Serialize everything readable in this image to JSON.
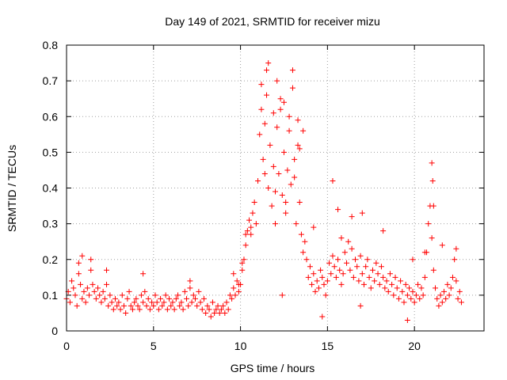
{
  "chart_data": {
    "type": "scatter",
    "title": "Day 149 of 2021, SRMTID for receiver mizu",
    "xlabel": "GPS time / hours",
    "ylabel": "SRMTID / TECUs",
    "xlim": [
      0,
      24
    ],
    "ylim": [
      0,
      0.8
    ],
    "xticks": [
      0,
      5,
      10,
      15,
      20
    ],
    "xtick_labels": [
      "0",
      "5",
      "10",
      "15",
      "20"
    ],
    "yticks": [
      0,
      0.1,
      0.2,
      0.3,
      0.4,
      0.5,
      0.6,
      0.7,
      0.8
    ],
    "ytick_labels": [
      "0",
      "0.1",
      "0.2",
      "0.3",
      "0.4",
      "0.5",
      "0.6",
      "0.7",
      "0.8"
    ],
    "grid": true,
    "marker": "+",
    "color": "#ff0000",
    "series": [
      {
        "name": "mizu",
        "x": [
          0.0,
          0.1,
          0.2,
          0.3,
          0.4,
          0.5,
          0.6,
          0.7,
          0.8,
          0.9,
          1.0,
          1.1,
          1.2,
          1.3,
          1.4,
          1.5,
          1.6,
          1.7,
          1.8,
          1.9,
          2.0,
          2.1,
          2.2,
          2.3,
          2.4,
          2.5,
          2.6,
          2.7,
          2.8,
          2.9,
          3.0,
          3.1,
          3.2,
          3.3,
          3.4,
          3.5,
          3.6,
          3.7,
          3.8,
          3.9,
          4.0,
          4.1,
          4.2,
          4.3,
          4.4,
          4.5,
          4.6,
          4.7,
          4.8,
          4.9,
          5.0,
          5.1,
          5.2,
          5.3,
          5.4,
          5.5,
          5.6,
          5.7,
          5.8,
          5.9,
          6.0,
          6.1,
          6.2,
          6.3,
          6.4,
          6.5,
          6.6,
          6.7,
          6.8,
          6.9,
          7.0,
          7.1,
          7.2,
          7.3,
          7.4,
          7.5,
          7.6,
          7.7,
          7.8,
          7.9,
          8.0,
          8.1,
          8.2,
          8.3,
          8.4,
          8.5,
          8.6,
          8.7,
          8.8,
          8.9,
          9.0,
          9.1,
          9.2,
          9.3,
          9.4,
          9.5,
          9.6,
          9.7,
          9.8,
          9.9,
          10.0,
          10.1,
          10.2,
          10.3,
          10.4,
          10.5,
          10.6,
          10.7,
          10.8,
          10.9,
          11.0,
          11.1,
          11.2,
          11.3,
          11.4,
          11.5,
          11.6,
          11.7,
          11.8,
          11.9,
          12.0,
          12.1,
          12.2,
          12.3,
          12.4,
          12.5,
          12.6,
          12.7,
          12.8,
          12.9,
          13.0,
          13.1,
          13.2,
          13.3,
          13.4,
          13.5,
          13.6,
          13.7,
          13.8,
          13.9,
          14.0,
          14.1,
          14.2,
          14.3,
          14.4,
          14.5,
          14.6,
          14.7,
          14.8,
          14.9,
          15.0,
          15.1,
          15.2,
          15.3,
          15.4,
          15.5,
          15.6,
          15.7,
          15.8,
          15.9,
          16.0,
          16.1,
          16.2,
          16.3,
          16.4,
          16.5,
          16.6,
          16.7,
          16.8,
          16.9,
          17.0,
          17.1,
          17.2,
          17.3,
          17.4,
          17.5,
          17.6,
          17.7,
          17.8,
          17.9,
          18.0,
          18.1,
          18.2,
          18.3,
          18.4,
          18.5,
          18.6,
          18.7,
          18.8,
          18.9,
          19.0,
          19.1,
          19.2,
          19.3,
          19.4,
          19.5,
          19.6,
          19.7,
          19.8,
          19.9,
          20.0,
          20.1,
          20.2,
          20.3,
          20.4,
          20.5,
          20.6,
          20.7,
          20.8,
          20.9,
          21.0,
          21.1,
          21.2,
          21.3,
          21.4,
          21.5,
          21.6,
          21.7,
          21.8,
          21.9,
          22.0,
          22.1,
          22.2,
          22.3,
          22.4,
          22.5,
          22.6,
          22.7,
          11.5,
          11.6,
          12.1,
          12.5,
          13.0,
          13.3,
          13.6,
          11.2,
          11.9,
          12.3,
          12.8,
          11.4,
          12.0,
          12.6,
          13.1,
          15.3,
          15.6,
          21.0,
          21.05,
          21.1,
          16.4,
          18.2,
          0.7,
          1.4,
          0.9,
          2.3,
          4.4,
          7.1,
          9.6,
          9.9,
          10.1,
          10.3,
          10.6,
          12.4,
          13.4,
          14.2,
          15.8,
          17.0,
          19.9,
          20.6,
          21.6,
          22.4,
          14.7,
          16.9,
          19.6
        ],
        "y": [
          0.09,
          0.11,
          0.08,
          0.14,
          0.12,
          0.1,
          0.07,
          0.16,
          0.13,
          0.09,
          0.11,
          0.08,
          0.12,
          0.1,
          0.17,
          0.13,
          0.11,
          0.09,
          0.12,
          0.1,
          0.08,
          0.11,
          0.09,
          0.13,
          0.07,
          0.1,
          0.08,
          0.06,
          0.09,
          0.07,
          0.08,
          0.06,
          0.1,
          0.07,
          0.05,
          0.09,
          0.11,
          0.07,
          0.06,
          0.08,
          0.09,
          0.07,
          0.06,
          0.1,
          0.08,
          0.11,
          0.07,
          0.09,
          0.06,
          0.08,
          0.07,
          0.1,
          0.08,
          0.06,
          0.09,
          0.07,
          0.08,
          0.1,
          0.06,
          0.09,
          0.07,
          0.08,
          0.06,
          0.09,
          0.1,
          0.07,
          0.08,
          0.06,
          0.11,
          0.09,
          0.07,
          0.12,
          0.08,
          0.1,
          0.09,
          0.07,
          0.11,
          0.08,
          0.06,
          0.09,
          0.05,
          0.07,
          0.06,
          0.04,
          0.08,
          0.05,
          0.06,
          0.07,
          0.05,
          0.06,
          0.07,
          0.05,
          0.08,
          0.06,
          0.1,
          0.09,
          0.12,
          0.1,
          0.14,
          0.11,
          0.13,
          0.17,
          0.2,
          0.24,
          0.28,
          0.31,
          0.27,
          0.33,
          0.36,
          0.3,
          0.42,
          0.55,
          0.62,
          0.48,
          0.58,
          0.66,
          0.4,
          0.52,
          0.35,
          0.46,
          0.3,
          0.57,
          0.44,
          0.62,
          0.38,
          0.5,
          0.33,
          0.45,
          0.56,
          0.41,
          0.68,
          0.48,
          0.3,
          0.52,
          0.36,
          0.27,
          0.22,
          0.25,
          0.2,
          0.15,
          0.18,
          0.13,
          0.16,
          0.11,
          0.14,
          0.12,
          0.17,
          0.15,
          0.13,
          0.1,
          0.14,
          0.19,
          0.16,
          0.21,
          0.18,
          0.15,
          0.2,
          0.17,
          0.13,
          0.16,
          0.22,
          0.19,
          0.25,
          0.17,
          0.23,
          0.15,
          0.2,
          0.18,
          0.14,
          0.21,
          0.16,
          0.13,
          0.18,
          0.2,
          0.15,
          0.12,
          0.17,
          0.14,
          0.19,
          0.16,
          0.13,
          0.18,
          0.15,
          0.12,
          0.14,
          0.11,
          0.16,
          0.13,
          0.1,
          0.15,
          0.12,
          0.09,
          0.14,
          0.11,
          0.08,
          0.13,
          0.1,
          0.12,
          0.09,
          0.11,
          0.08,
          0.1,
          0.13,
          0.09,
          0.12,
          0.1,
          0.15,
          0.22,
          0.3,
          0.35,
          0.26,
          0.17,
          0.12,
          0.09,
          0.07,
          0.1,
          0.08,
          0.11,
          0.09,
          0.13,
          0.1,
          0.12,
          0.15,
          0.2,
          0.14,
          0.09,
          0.11,
          0.08,
          0.73,
          0.75,
          0.7,
          0.64,
          0.73,
          0.59,
          0.56,
          0.69,
          0.61,
          0.65,
          0.6,
          0.44,
          0.39,
          0.36,
          0.43,
          0.42,
          0.34,
          0.47,
          0.42,
          0.35,
          0.32,
          0.28,
          0.19,
          0.2,
          0.21,
          0.17,
          0.16,
          0.14,
          0.16,
          0.13,
          0.19,
          0.27,
          0.29,
          0.1,
          0.51,
          0.29,
          0.26,
          0.33,
          0.2,
          0.22,
          0.24,
          0.23,
          0.04,
          0.07,
          0.03
        ]
      }
    ]
  }
}
